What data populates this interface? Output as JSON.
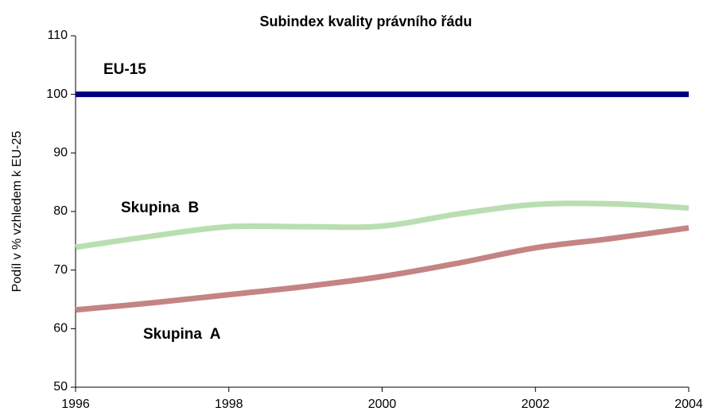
{
  "chart_data": {
    "type": "line",
    "title": "Subindex kvality právního řádu",
    "y_label": "Podíl v % vzhledem k EU-25",
    "x": [
      1996,
      1997,
      1998,
      1999,
      2000,
      2001,
      2002,
      2003,
      2004
    ],
    "series": [
      {
        "name": "EU-15",
        "color": "#000080",
        "label_color": "#000080",
        "values": [
          100,
          100,
          100,
          100,
          100,
          100,
          100,
          100,
          100
        ]
      },
      {
        "name": "Skupina  B",
        "color": "#b9deb2",
        "label_color": "#2e8b2e",
        "values": [
          73.9,
          75.8,
          77.4,
          77.4,
          77.5,
          79.6,
          81.2,
          81.3,
          80.6
        ]
      },
      {
        "name": "Skupina  A",
        "color": "#c48484",
        "label_color": "#993333",
        "values": [
          63.2,
          64.4,
          65.8,
          67.2,
          68.9,
          71.2,
          73.8,
          75.4,
          77.2
        ]
      }
    ],
    "xlim": [
      1996,
      2004
    ],
    "xticks": [
      1996,
      1998,
      2000,
      2002,
      2004
    ],
    "ylim": [
      50,
      110
    ],
    "yticks": [
      50,
      60,
      70,
      80,
      90,
      100,
      110
    ],
    "grid": false
  }
}
